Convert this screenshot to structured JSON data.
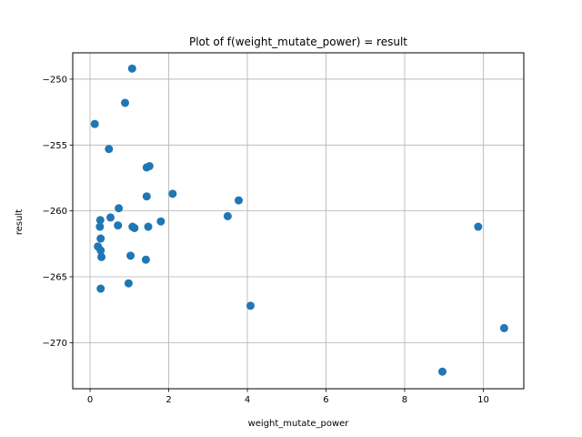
{
  "chart_data": {
    "type": "scatter",
    "title": "Plot of f(weight_mutate_power) = result",
    "xlabel": "weight_mutate_power",
    "ylabel": "result",
    "xlim": [
      -0.44,
      11.03
    ],
    "ylim": [
      -273.5,
      -248.0
    ],
    "xticks": [
      0,
      2,
      4,
      6,
      8,
      10
    ],
    "xtick_labels": [
      "0",
      "2",
      "4",
      "6",
      "8",
      "10"
    ],
    "yticks": [
      -250,
      -255,
      -260,
      -265,
      -270
    ],
    "ytick_labels": [
      "−250",
      "−255",
      "−260",
      "−265",
      "−270"
    ],
    "grid": true,
    "marker_color": "#1f77b4",
    "points": [
      {
        "x": 1.07,
        "y": -249.2
      },
      {
        "x": 0.89,
        "y": -251.8
      },
      {
        "x": 0.12,
        "y": -253.4
      },
      {
        "x": 0.48,
        "y": -255.3
      },
      {
        "x": 1.44,
        "y": -256.7
      },
      {
        "x": 1.51,
        "y": -256.6
      },
      {
        "x": 2.1,
        "y": -258.7
      },
      {
        "x": 1.44,
        "y": -258.9
      },
      {
        "x": 3.78,
        "y": -259.2
      },
      {
        "x": 0.73,
        "y": -259.8
      },
      {
        "x": 0.52,
        "y": -260.5
      },
      {
        "x": 0.26,
        "y": -260.7
      },
      {
        "x": 1.8,
        "y": -260.8
      },
      {
        "x": 3.5,
        "y": -260.4
      },
      {
        "x": 0.25,
        "y": -261.2
      },
      {
        "x": 0.71,
        "y": -261.1
      },
      {
        "x": 1.08,
        "y": -261.2
      },
      {
        "x": 1.13,
        "y": -261.3
      },
      {
        "x": 1.48,
        "y": -261.2
      },
      {
        "x": 9.87,
        "y": -261.2
      },
      {
        "x": 0.27,
        "y": -262.1
      },
      {
        "x": 0.2,
        "y": -262.7
      },
      {
        "x": 0.27,
        "y": -263.0
      },
      {
        "x": 0.29,
        "y": -263.5
      },
      {
        "x": 1.03,
        "y": -263.4
      },
      {
        "x": 1.42,
        "y": -263.7
      },
      {
        "x": 0.98,
        "y": -265.5
      },
      {
        "x": 0.27,
        "y": -265.9
      },
      {
        "x": 4.08,
        "y": -267.2
      },
      {
        "x": 10.53,
        "y": -268.9
      },
      {
        "x": 8.96,
        "y": -272.2
      }
    ]
  }
}
